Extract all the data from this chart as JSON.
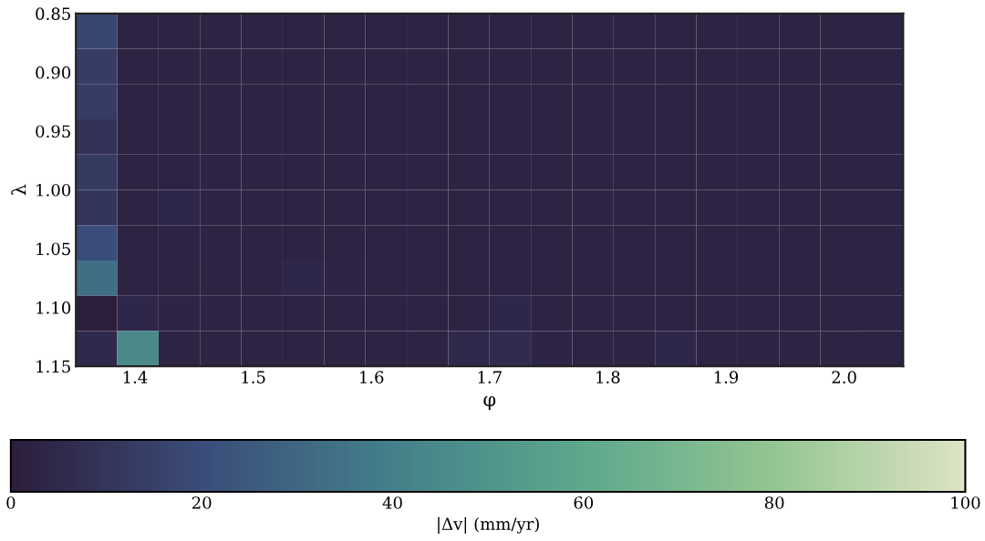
{
  "chart_data": {
    "type": "heatmap",
    "xlabel": "φ",
    "ylabel": "λ",
    "clabel": "|Δv| (mm/yr)",
    "x": [
      1.3675,
      1.4025,
      1.4375,
      1.4725,
      1.5075,
      1.5425,
      1.5775,
      1.6125,
      1.6475,
      1.6825,
      1.7175,
      1.7525,
      1.7875,
      1.8225,
      1.8575,
      1.8925,
      1.9275,
      1.9625,
      1.9975,
      2.0325
    ],
    "y": [
      0.865,
      0.895,
      0.925,
      0.955,
      0.985,
      1.015,
      1.045,
      1.075,
      1.105,
      1.135
    ],
    "cells": [
      [
        17,
        2,
        2,
        2,
        2,
        2,
        2,
        2,
        2,
        2,
        2,
        2,
        2,
        2,
        2,
        2,
        2,
        2,
        2,
        2
      ],
      [
        13,
        2,
        2,
        2,
        2,
        2,
        2,
        2,
        2,
        2,
        2,
        2,
        2,
        2,
        2,
        2,
        2,
        2,
        2,
        2
      ],
      [
        13,
        2,
        2,
        2,
        2,
        2,
        2,
        2,
        2,
        2,
        2,
        2,
        2,
        2,
        2,
        2,
        2,
        2,
        2,
        2
      ],
      [
        9,
        2,
        2,
        2,
        2,
        2,
        2,
        2,
        2,
        2,
        2,
        2,
        2,
        2,
        2,
        2,
        2,
        2,
        2,
        2
      ],
      [
        12,
        2,
        2,
        3,
        2,
        2,
        2,
        2,
        2,
        2,
        2,
        2,
        2,
        2,
        2,
        2,
        2,
        2,
        2,
        2
      ],
      [
        10,
        2,
        4,
        2,
        2,
        2,
        2,
        2,
        2,
        2,
        2,
        2,
        2,
        2,
        2,
        2,
        2,
        2,
        2,
        2
      ],
      [
        20,
        2,
        3,
        2,
        2,
        2,
        2,
        2,
        2,
        2,
        2,
        2,
        2,
        2,
        2,
        2,
        2,
        2,
        2,
        2
      ],
      [
        33,
        2,
        2,
        2,
        2,
        4,
        3,
        2,
        2,
        2,
        2,
        2,
        2,
        2,
        2,
        2,
        2,
        2,
        2,
        2
      ],
      [
        0,
        4,
        3,
        2,
        2,
        2,
        2,
        2,
        2,
        2,
        4,
        2,
        2,
        2,
        2,
        2,
        2,
        2,
        2,
        2
      ],
      [
        5,
        45,
        2,
        2,
        2,
        2,
        2,
        2,
        2,
        5,
        6,
        3,
        2,
        2,
        4,
        2,
        2,
        2.5,
        2.5,
        2
      ]
    ],
    "xlim": [
      1.35,
      2.05
    ],
    "xticks": [
      1.4,
      1.5,
      1.6,
      1.7,
      1.8,
      1.9,
      {
        "value": 2.0,
        "label": "2.0"
      }
    ],
    "ylim": [
      1.15,
      0.85
    ],
    "yticks": [
      0.85,
      {
        "value": 0.9,
        "label": "0.90"
      },
      0.95,
      {
        "value": 1.0,
        "label": "1.00"
      },
      1.05,
      {
        "value": 1.1,
        "label": "1.10"
      },
      1.15
    ],
    "clim": [
      0,
      100
    ],
    "cticks": [
      0,
      20,
      40,
      60,
      80,
      100
    ],
    "grid": false
  }
}
